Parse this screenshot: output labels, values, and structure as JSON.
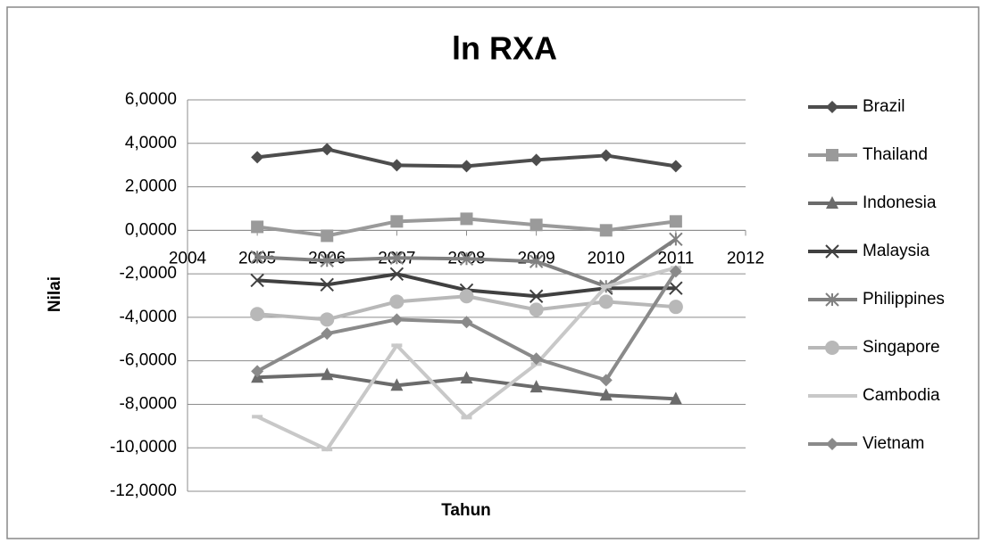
{
  "chart_data": {
    "type": "line",
    "title": "ln RXA",
    "x_label": "Tahun",
    "y_label": "Nilai",
    "x": [
      2005,
      2006,
      2007,
      2008,
      2009,
      2010,
      2011
    ],
    "xlim": [
      2004,
      2012
    ],
    "xticks": [
      2004,
      2005,
      2006,
      2007,
      2008,
      2009,
      2010,
      2011,
      2012
    ],
    "ylim": [
      -12,
      6
    ],
    "yticks": [
      {
        "value": -12,
        "label": "-12,0000"
      },
      {
        "value": -10,
        "label": "-10,0000"
      },
      {
        "value": -8,
        "label": "-8,0000"
      },
      {
        "value": -6,
        "label": "-6,0000"
      },
      {
        "value": -4,
        "label": "-4,0000"
      },
      {
        "value": -2,
        "label": "-2,0000"
      },
      {
        "value": 0,
        "label": "0,0000"
      },
      {
        "value": 2,
        "label": "2,0000"
      },
      {
        "value": 4,
        "label": "4,0000"
      },
      {
        "value": 6,
        "label": "6,0000"
      }
    ],
    "grid": true,
    "legend": "right",
    "series": [
      {
        "name": "Brazil",
        "color": "#4d4d4d",
        "marker": "diamond",
        "values": [
          3.36,
          3.73,
          2.99,
          2.95,
          3.24,
          3.44,
          2.95
        ]
      },
      {
        "name": "Thailand",
        "color": "#9a9a9a",
        "marker": "square",
        "values": [
          0.16,
          -0.25,
          0.41,
          0.53,
          0.25,
          0.0,
          0.41
        ]
      },
      {
        "name": "Indonesia",
        "color": "#6b6b6b",
        "marker": "triangle",
        "values": [
          -6.76,
          -6.64,
          -7.13,
          -6.8,
          -7.21,
          -7.58,
          -7.75
        ]
      },
      {
        "name": "Malaysia",
        "color": "#404040",
        "marker": "x",
        "values": [
          -2.3,
          -2.5,
          -2.01,
          -2.75,
          -3.03,
          -2.66,
          -2.66
        ]
      },
      {
        "name": "Philippines",
        "color": "#808080",
        "marker": "star",
        "values": [
          -1.23,
          -1.39,
          -1.27,
          -1.31,
          -1.43,
          -2.58,
          -0.41
        ]
      },
      {
        "name": "Singapore",
        "color": "#b8b8b8",
        "marker": "circle",
        "values": [
          -3.85,
          -4.1,
          -3.28,
          -3.03,
          -3.65,
          -3.28,
          -3.52
        ]
      },
      {
        "name": "Cambodia",
        "color": "#c8c8c8",
        "marker": "dash",
        "values": [
          -8.57,
          -10.08,
          -5.29,
          -8.61,
          -6.15,
          -2.58,
          -1.72
        ]
      },
      {
        "name": "Vietnam",
        "color": "#8a8a8a",
        "marker": "diamond",
        "values": [
          -6.48,
          -4.75,
          -4.1,
          -4.22,
          -5.9,
          -6.89,
          -1.89
        ]
      }
    ]
  }
}
